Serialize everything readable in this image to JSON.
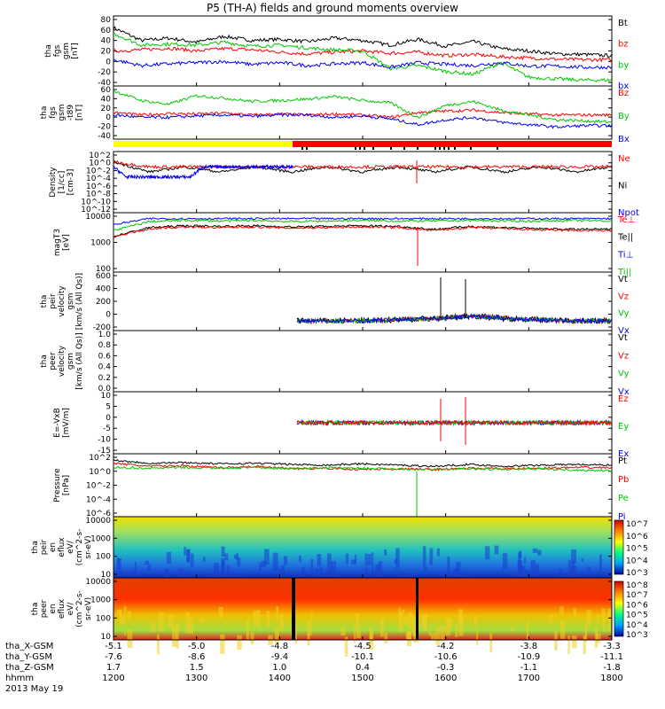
{
  "title": "P5 (TH-A) fields and ground moments overview",
  "colors": {
    "black": "#000000",
    "red": "#ff0000",
    "green": "#00c800",
    "blue": "#0000ff",
    "yellow": "#ffff00"
  },
  "panels": [
    {
      "ylabel": [
        "tha",
        "fgs",
        "gsm",
        "[nT]"
      ],
      "ticks": [
        "80",
        "60",
        "40",
        "20",
        "0",
        "-20",
        "-40"
      ],
      "legend": [
        {
          "text": "Bt",
          "color": "#000000"
        },
        {
          "text": "bz",
          "color": "#ff0000"
        },
        {
          "text": "by",
          "color": "#00c800"
        },
        {
          "text": "bx",
          "color": "#0000ff"
        }
      ]
    },
    {
      "ylabel": [
        "tha",
        "fgs",
        "gsm",
        "-t89",
        "[nT]"
      ],
      "ticks": [
        "60",
        "40",
        "20",
        "0",
        "-20",
        "-40"
      ],
      "legend": [
        {
          "text": "Bz",
          "color": "#ff0000"
        },
        {
          "text": "By",
          "color": "#00c800"
        },
        {
          "text": "Bx",
          "color": "#0000ff"
        }
      ]
    },
    {
      "ylabel": [
        "Density",
        "[1/cc]",
        "[cm-3]"
      ],
      "ticks": [
        "10^2",
        "10^0",
        "10^-2",
        "10^-4",
        "10^-6",
        "10^-8",
        "10^-10",
        "10^-12"
      ],
      "legend": [
        {
          "text": "Ne",
          "color": "#ff0000"
        },
        {
          "text": "Ni",
          "color": "#000000"
        },
        {
          "text": "Npot",
          "color": "#0000ff"
        }
      ]
    },
    {
      "ylabel": [
        "magT3",
        "[eV]"
      ],
      "ticks": [
        "10000",
        "1000",
        "100"
      ],
      "legend": [
        {
          "text": "Te⊥",
          "color": "#ff0000"
        },
        {
          "text": "Te||",
          "color": "#000000"
        },
        {
          "text": "Ti⊥",
          "color": "#0000ff"
        },
        {
          "text": "Ti||",
          "color": "#00c800"
        }
      ]
    },
    {
      "ylabel": [
        "tha",
        "peir",
        "velocity",
        "gsm",
        "[km/s (All Qs)]"
      ],
      "ticks": [
        "600",
        "400",
        "200",
        "0",
        "-200"
      ],
      "legend": [
        {
          "text": "Vt",
          "color": "#000000"
        },
        {
          "text": "Vz",
          "color": "#ff0000"
        },
        {
          "text": "Vy",
          "color": "#00c800"
        },
        {
          "text": "Vx",
          "color": "#0000ff"
        }
      ]
    },
    {
      "ylabel": [
        "tha",
        "peer",
        "velocity",
        "gsm",
        "[km/s (All Qs)]"
      ],
      "ticks": [
        "1.0",
        "0.8",
        "0.6",
        "0.4",
        "0.2",
        "0.0"
      ],
      "legend": [
        {
          "text": "Vt",
          "color": "#000000"
        },
        {
          "text": "Vz",
          "color": "#ff0000"
        },
        {
          "text": "Vy",
          "color": "#00c800"
        },
        {
          "text": "Vx",
          "color": "#0000ff"
        }
      ]
    },
    {
      "ylabel": [
        "E=-VxB",
        "[mV/m]"
      ],
      "ticks": [
        "10",
        "5",
        "0",
        "-5",
        "-10",
        "-15"
      ],
      "legend": [
        {
          "text": "Ez",
          "color": "#ff0000"
        },
        {
          "text": "Ey",
          "color": "#00c800"
        },
        {
          "text": "Ex",
          "color": "#0000ff"
        }
      ]
    },
    {
      "ylabel": [
        "Pressure",
        "[nPa]"
      ],
      "ticks": [
        "10^2",
        "10^0",
        "10^-2",
        "10^-4",
        "10^-6"
      ],
      "legend": [
        {
          "text": "Pt",
          "color": "#000000"
        },
        {
          "text": "Pb",
          "color": "#ff0000"
        },
        {
          "text": "Pe",
          "color": "#00c800"
        },
        {
          "text": "Pi",
          "color": "#0000ff"
        }
      ]
    },
    {
      "ylabel": [
        "tha",
        "peir",
        "en",
        "eflux",
        "eV/",
        "(cm^2-s-",
        "sr-eV)"
      ],
      "ticks": [
        "10000",
        "1000",
        "100",
        "10"
      ],
      "colorbar": [
        "10^7",
        "10^6",
        "10^5",
        "10^4",
        "10^3"
      ]
    },
    {
      "ylabel": [
        "tha",
        "peer",
        "en",
        "eflux",
        "eV/",
        "(cm^2-s-",
        "sr-eV)"
      ],
      "ticks": [
        "10000",
        "1000",
        "100",
        "10"
      ],
      "colorbar": [
        "10^8",
        "10^7",
        "10^6",
        "10^5",
        "10^4",
        "10^3"
      ]
    }
  ],
  "xaxis": {
    "row_labels": [
      "tha_X-GSM",
      "tha_Y-GSM",
      "tha_Z-GSM",
      "hhmm",
      "2013 May 19"
    ],
    "x_gsm": [
      "-5.1",
      "-5.0",
      "-4.8",
      "-4.5",
      "-4.2",
      "-3.8",
      "-3.3"
    ],
    "y_gsm": [
      "-7.6",
      "-8.6",
      "-9.4",
      "-10.1",
      "-10.6",
      "-10.9",
      "-11.1"
    ],
    "z_gsm": [
      "1.7",
      "1.5",
      "1.0",
      "0.4",
      "-0.3",
      "-1.1",
      "-1.8"
    ],
    "hhmm": [
      "1200",
      "1300",
      "1400",
      "1500",
      "1600",
      "1700",
      "1800"
    ]
  },
  "chart_data": {
    "type": "line",
    "title": "P5 (TH-A) fields and ground moments overview",
    "date": "2013 May 19",
    "x_range": [
      "1200",
      "1800"
    ],
    "series_approx": [
      {
        "name": "Bt",
        "panel": 1,
        "values": [
          60,
          38,
          42,
          35,
          45,
          38,
          40,
          36,
          42,
          38,
          30,
          40,
          28,
          36,
          24,
          20,
          15,
          14,
          12
        ]
      },
      {
        "name": "bz",
        "panel": 1,
        "values": [
          20,
          22,
          25,
          20,
          24,
          22,
          18,
          15,
          18,
          20,
          16,
          18,
          12,
          14,
          10,
          8,
          6,
          5,
          5
        ]
      },
      {
        "name": "by",
        "panel": 1,
        "values": [
          50,
          30,
          32,
          30,
          35,
          28,
          30,
          25,
          22,
          20,
          -10,
          -5,
          -15,
          -20,
          0,
          -25,
          -28,
          -30,
          -30
        ]
      },
      {
        "name": "bx",
        "panel": 1,
        "values": [
          5,
          -5,
          -2,
          0,
          2,
          -3,
          0,
          -5,
          -2,
          0,
          -8,
          0,
          -3,
          -5,
          0,
          -6,
          -6,
          -8,
          -8
        ]
      },
      {
        "name": "Bz",
        "panel": 2,
        "values": [
          5,
          0,
          3,
          2,
          4,
          0,
          2,
          0,
          2,
          0,
          -5,
          5,
          8,
          10,
          5,
          2,
          0,
          0,
          0
        ]
      },
      {
        "name": "By",
        "panel": 2,
        "values": [
          50,
          30,
          22,
          40,
          35,
          28,
          30,
          33,
          38,
          30,
          25,
          -5,
          20,
          28,
          10,
          0,
          -10,
          -12,
          -15
        ]
      },
      {
        "name": "Bx",
        "panel": 2,
        "values": [
          0,
          -5,
          -5,
          -2,
          0,
          -3,
          0,
          0,
          -5,
          -2,
          -8,
          -20,
          -10,
          -5,
          -15,
          -20,
          -25,
          -22,
          -22
        ]
      }
    ]
  }
}
